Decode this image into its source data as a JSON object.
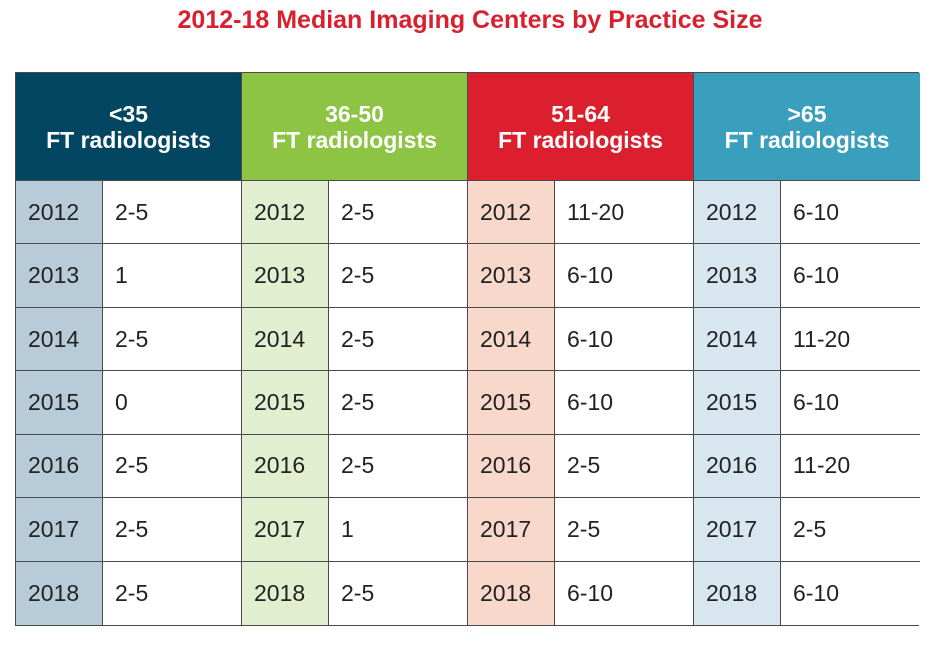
{
  "chart_data": {
    "type": "table",
    "title": "2012-18 Median Imaging Centers by Practice Size",
    "groups": [
      {
        "label_line1": "<35",
        "label_line2": "FT radiologists",
        "header_color": "#034662",
        "year_color": "#b7cbd9",
        "rows": [
          {
            "year": "2012",
            "value": "2-5"
          },
          {
            "year": "2013",
            "value": "1"
          },
          {
            "year": "2014",
            "value": "2-5"
          },
          {
            "year": "2015",
            "value": "0"
          },
          {
            "year": "2016",
            "value": "2-5"
          },
          {
            "year": "2017",
            "value": "2-5"
          },
          {
            "year": "2018",
            "value": "2-5"
          }
        ]
      },
      {
        "label_line1": "36-50",
        "label_line2": "FT radiologists",
        "header_color": "#8dc444",
        "year_color": "#e1eed0",
        "rows": [
          {
            "year": "2012",
            "value": "2-5"
          },
          {
            "year": "2013",
            "value": "2-5"
          },
          {
            "year": "2014",
            "value": "2-5"
          },
          {
            "year": "2015",
            "value": "2-5"
          },
          {
            "year": "2016",
            "value": "2-5"
          },
          {
            "year": "2017",
            "value": "1"
          },
          {
            "year": "2018",
            "value": "2-5"
          }
        ]
      },
      {
        "label_line1": "51-64",
        "label_line2": "FT radiologists",
        "header_color": "#dc1f2e",
        "year_color": "#f8d8cb",
        "rows": [
          {
            "year": "2012",
            "value": "11-20"
          },
          {
            "year": "2013",
            "value": "6-10"
          },
          {
            "year": "2014",
            "value": "6-10"
          },
          {
            "year": "2015",
            "value": "6-10"
          },
          {
            "year": "2016",
            "value": "2-5"
          },
          {
            "year": "2017",
            "value": "2-5"
          },
          {
            "year": "2018",
            "value": "6-10"
          }
        ]
      },
      {
        "label_line1": ">65",
        "label_line2": "FT radiologists",
        "header_color": "#3a9fbd",
        "year_color": "#d8e6ef",
        "rows": [
          {
            "year": "2012",
            "value": "6-10"
          },
          {
            "year": "2013",
            "value": "6-10"
          },
          {
            "year": "2014",
            "value": "11-20"
          },
          {
            "year": "2015",
            "value": "6-10"
          },
          {
            "year": "2016",
            "value": "11-20"
          },
          {
            "year": "2017",
            "value": "2-5"
          },
          {
            "year": "2018",
            "value": "6-10"
          }
        ]
      }
    ]
  }
}
